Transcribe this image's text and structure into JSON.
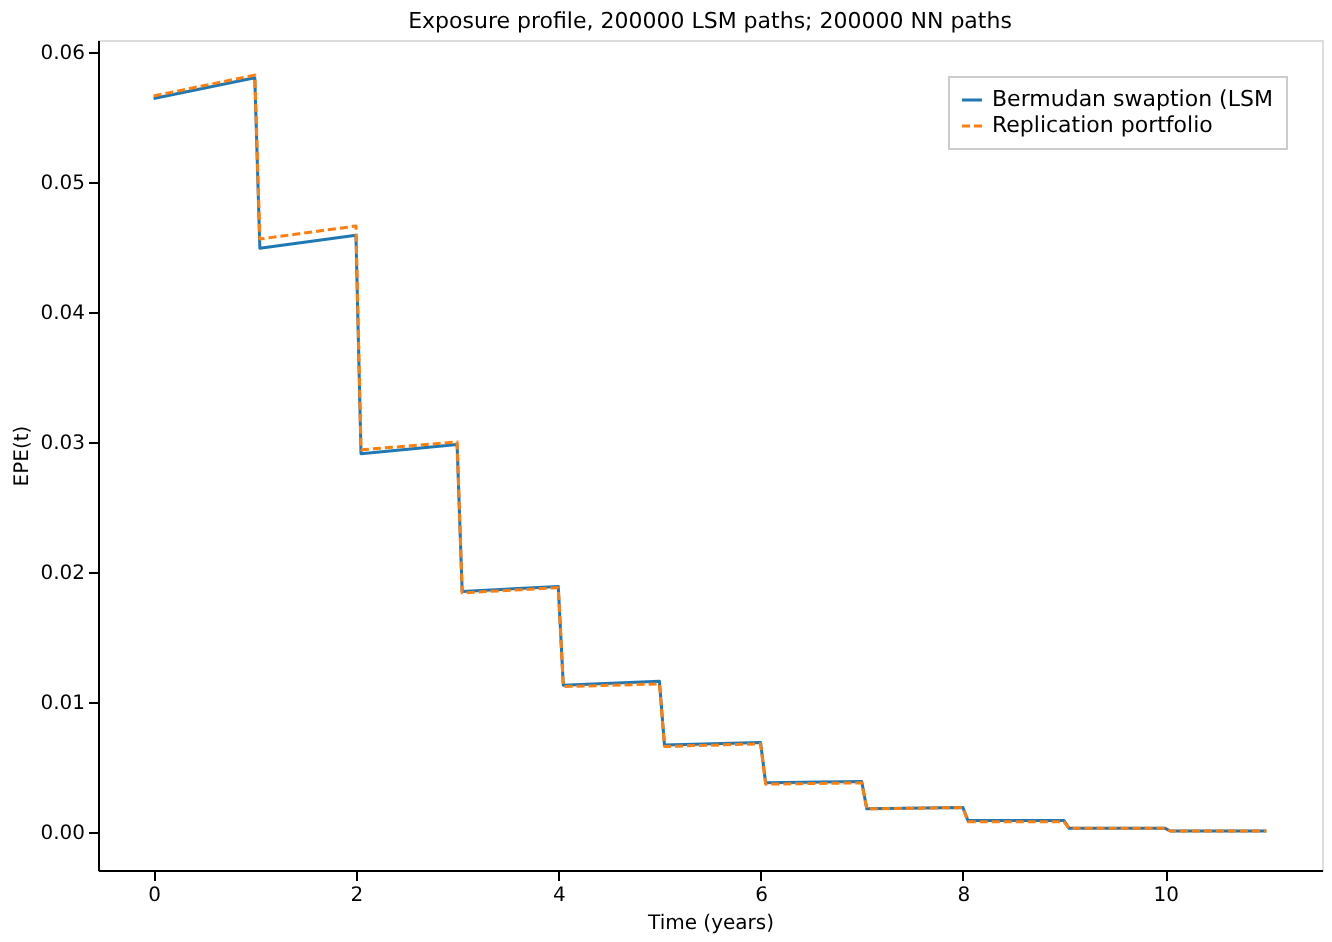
{
  "chart_data": {
    "type": "line",
    "title": "Exposure profile, 200000 LSM paths; 200000 NN paths",
    "xlabel": "Time (years)",
    "ylabel": "EPE(t)",
    "series": [
      {
        "name": "Bermudan swaption (LSM",
        "color": "#1f77b4",
        "line_style": "solid",
        "x": [
          0,
          1,
          1.05,
          2,
          2.05,
          3,
          3.05,
          4,
          4.05,
          5,
          5.05,
          6,
          6.05,
          7,
          7.05,
          8,
          8.05,
          9,
          9.05,
          10,
          10.05,
          11
        ],
        "values": [
          0.0564,
          0.058,
          0.0449,
          0.0459,
          0.0291,
          0.0298,
          0.0185,
          0.0189,
          0.0113,
          0.0116,
          0.0067,
          0.0069,
          0.0038,
          0.0039,
          0.0018,
          0.0019,
          0.0009,
          0.0009,
          0.0003,
          0.0003,
          0.0001,
          0.0001
        ]
      },
      {
        "name": "Replication portfolio",
        "color": "#ff7f0e",
        "line_style": "dashed",
        "x": [
          0,
          1,
          1.05,
          2,
          2.05,
          3,
          3.05,
          4,
          4.05,
          5,
          5.05,
          6,
          6.05,
          7,
          7.05,
          8,
          8.05,
          9,
          9.05,
          10,
          10.05,
          11
        ],
        "values": [
          0.0566,
          0.0582,
          0.0456,
          0.0466,
          0.0294,
          0.03,
          0.0184,
          0.0188,
          0.0112,
          0.0114,
          0.0066,
          0.0068,
          0.0037,
          0.0038,
          0.0018,
          0.0019,
          0.0008,
          0.0008,
          0.0003,
          0.0003,
          0.0001,
          0.0001
        ]
      }
    ],
    "xlim": [
      -0.55,
      11.55
    ],
    "xticks": [
      0,
      2,
      4,
      6,
      8,
      10
    ],
    "ylim": [
      -0.0029,
      0.0609
    ],
    "yticks": [
      {
        "value": 0,
        "label": "0.00"
      },
      {
        "value": 0.01,
        "label": "0.01"
      },
      {
        "value": 0.02,
        "label": "0.02"
      },
      {
        "value": 0.03,
        "label": "0.03"
      },
      {
        "value": 0.04,
        "label": "0.04"
      },
      {
        "value": 0.05,
        "label": "0.05"
      },
      {
        "value": 0.06,
        "label": "0.06"
      }
    ],
    "grid": false,
    "legend": "top right"
  }
}
